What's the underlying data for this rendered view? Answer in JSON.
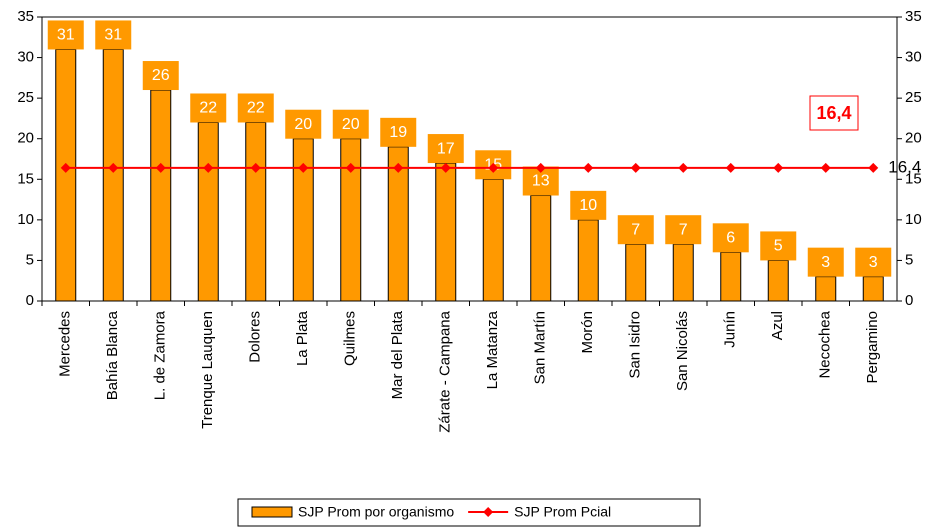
{
  "chart_data": {
    "type": "bar",
    "categories": [
      "Mercedes",
      "Bahía Blanca",
      "L. de Zamora",
      "Trenque Lauquen",
      "Dolores",
      "La Plata",
      "Quilmes",
      "Mar del Plata",
      "Zárate - Campana",
      "La Matanza",
      "San Martín",
      "Morón",
      "San Isidro",
      "San Nicolás",
      "Junín",
      "Azul",
      "Necochea",
      "Pergamino"
    ],
    "series": [
      {
        "name": "SJP Prom por organismo",
        "type": "bar",
        "color": "#FF9900",
        "values": [
          31,
          31,
          26,
          22,
          22,
          20,
          20,
          19,
          17,
          15,
          13,
          10,
          7,
          7,
          6,
          5,
          3,
          3
        ]
      },
      {
        "name": "SJP Prom Pcial",
        "type": "line",
        "axis": "y2",
        "color": "#FF0000",
        "values": [
          16.4,
          16.4,
          16.4,
          16.4,
          16.4,
          16.4,
          16.4,
          16.4,
          16.4,
          16.4,
          16.4,
          16.4,
          16.4,
          16.4,
          16.4,
          16.4,
          16.4,
          16.4
        ],
        "value_labels": [
          null,
          null,
          null,
          null,
          null,
          null,
          null,
          null,
          null,
          null,
          null,
          null,
          null,
          null,
          null,
          null,
          null,
          "16,4"
        ]
      }
    ],
    "annotation": "16,4",
    "ylim": [
      0,
      35
    ],
    "yticks": [
      0,
      5,
      10,
      15,
      20,
      25,
      30,
      35
    ],
    "y2lim": [
      0,
      35
    ],
    "y2ticks": [
      0,
      5,
      10,
      15,
      20,
      25,
      30,
      35
    ],
    "legend": "bottom"
  }
}
